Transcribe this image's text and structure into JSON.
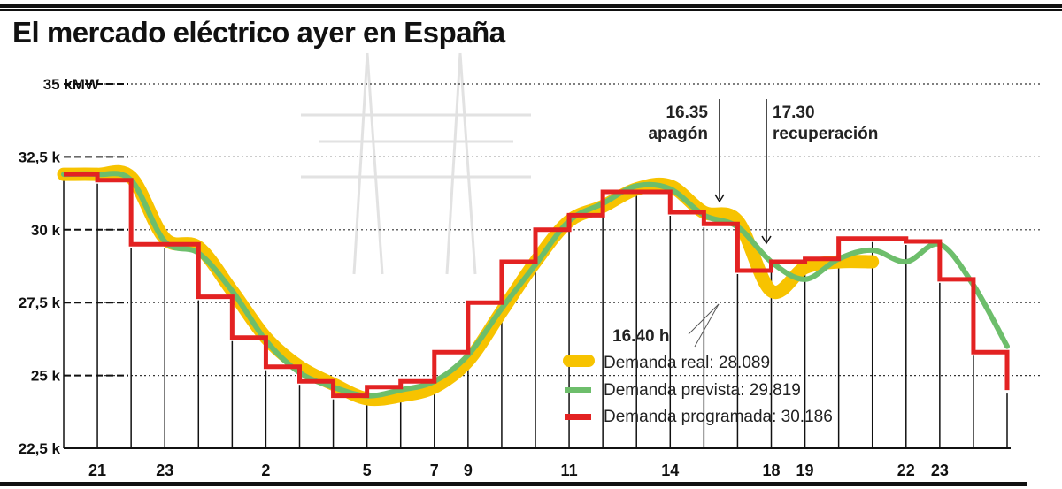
{
  "header": {
    "title": "El mercado eléctrico ayer en España"
  },
  "chart_data": {
    "type": "line",
    "title": "El mercado eléctrico ayer en España",
    "xlabel": "",
    "ylabel": "MW",
    "y_tick_labels": [
      "35 kMW",
      "32,5 k",
      "30 k",
      "27,5 k",
      "25 k",
      "22,5 k"
    ],
    "y_ticks": [
      35000,
      32500,
      30000,
      27500,
      25000,
      22500
    ],
    "ylim": [
      22500,
      35000
    ],
    "x_tick_labels": [
      "21",
      "23",
      "2",
      "5",
      "7",
      "9",
      "11",
      "14",
      "18",
      "19",
      "22",
      "23"
    ],
    "x_hours": [
      20,
      21,
      22,
      23,
      0,
      1,
      2,
      3,
      4,
      5,
      6,
      7,
      8,
      9,
      10,
      11,
      12,
      13,
      14,
      15,
      16,
      17,
      18,
      19,
      20,
      21,
      22,
      23,
      24
    ],
    "series": [
      {
        "name": "Demanda real",
        "color": "#F7C300",
        "style": "thick smooth",
        "legend_value": "28.089",
        "values": [
          31900,
          31900,
          31800,
          29700,
          29400,
          27900,
          26300,
          25300,
          24700,
          24200,
          24300,
          24600,
          25500,
          27200,
          28900,
          30300,
          30800,
          31400,
          31500,
          30600,
          30300,
          27900,
          28700,
          28900,
          28900,
          null,
          null,
          null,
          null
        ]
      },
      {
        "name": "Demanda prevista",
        "color": "#6DBE6B",
        "style": "smooth",
        "legend_value": "29.819",
        "values": [
          31900,
          31900,
          31700,
          29600,
          29200,
          27900,
          26200,
          25100,
          24600,
          24300,
          24500,
          24800,
          25700,
          27300,
          28800,
          30300,
          30900,
          31500,
          31400,
          30500,
          30100,
          28900,
          28300,
          29000,
          29300,
          28900,
          29500,
          28100,
          26000
        ]
      },
      {
        "name": "Demanda programada",
        "color": "#E32222",
        "style": "step",
        "legend_value": "30.186",
        "values": [
          31900,
          31700,
          29500,
          29500,
          27700,
          26300,
          25300,
          24800,
          24300,
          24600,
          24800,
          25800,
          27500,
          28900,
          30000,
          30500,
          31300,
          31300,
          30600,
          30200,
          28600,
          28900,
          29000,
          29700,
          29700,
          29600,
          28300,
          25800,
          24500
        ]
      }
    ],
    "annotations": [
      {
        "text": "16.35 apagón",
        "x_hour": 16.58
      },
      {
        "text": "17.30 recuperación",
        "x_hour": 17.5
      },
      {
        "text": "16.40 h",
        "x_hour": 16.67,
        "y": 27500
      }
    ],
    "grid": true,
    "legend_position": "lower right, inside"
  },
  "annotations": {
    "apagon_time": "16.35",
    "apagon_label": "apagón",
    "recuperacion_time": "17.30",
    "recuperacion_label": "recuperación",
    "point_label": "16.40 h"
  },
  "legend": {
    "items": [
      {
        "label": "Demanda real: 28.089",
        "color": "#F7C300"
      },
      {
        "label": "Demanda prevista: 29.819",
        "color": "#6DBE6B"
      },
      {
        "label": "Demanda programada: 30.186",
        "color": "#E32222"
      }
    ]
  },
  "axis": {
    "y": [
      "35 kMW",
      "32,5 k",
      "30 k",
      "27,5 k",
      "25 k",
      "22,5 k"
    ],
    "x": [
      "21",
      "23",
      "2",
      "5",
      "7",
      "9",
      "11",
      "14",
      "18",
      "19",
      "22",
      "23"
    ]
  }
}
